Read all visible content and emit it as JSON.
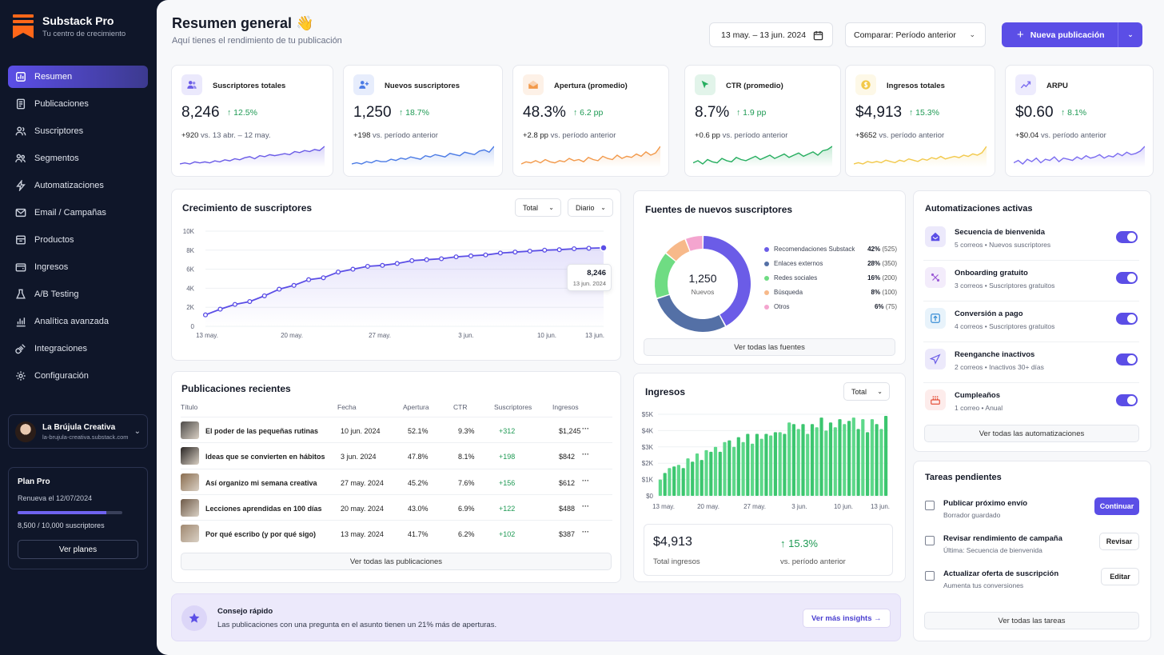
{
  "brand": {
    "name": "Substack Pro",
    "tagline": "Tu centro de crecimiento"
  },
  "nav": [
    {
      "label": "Resumen",
      "icon": "chart-square-icon",
      "active": true
    },
    {
      "label": "Publicaciones",
      "icon": "document-icon"
    },
    {
      "label": "Suscriptores",
      "icon": "users-icon"
    },
    {
      "label": "Segmentos",
      "icon": "segments-icon"
    },
    {
      "label": "Automatizaciones",
      "icon": "lightning-icon"
    },
    {
      "label": "Email / Campañas",
      "icon": "mail-icon"
    },
    {
      "label": "Productos",
      "icon": "box-icon"
    },
    {
      "label": "Ingresos",
      "icon": "wallet-icon"
    },
    {
      "label": "A/B Testing",
      "icon": "flask-icon"
    },
    {
      "label": "Analítica avanzada",
      "icon": "bar-chart-icon"
    },
    {
      "label": "Integraciones",
      "icon": "plug-icon"
    },
    {
      "label": "Configuración",
      "icon": "gear-icon"
    }
  ],
  "account": {
    "name": "La Brújula Creativa",
    "url": "la-brujula-creativa.substack.com"
  },
  "plan": {
    "title": "Plan Pro",
    "renew": "Renueva el 12/07/2024",
    "usage_text": "8,500 / 10,000 suscriptores",
    "used": 8500,
    "limit": 10000,
    "button": "Ver planes"
  },
  "header": {
    "title": "Resumen general 👋",
    "subtitle": "Aquí tienes el rendimiento de tu publicación",
    "date_range": "13 may. – 13 jun. 2024",
    "compare": "Comparar: Período anterior",
    "new_post": "Nueva publicación"
  },
  "kpis": [
    {
      "label": "Suscriptores totales",
      "value": "8,246",
      "delta": "12.5%",
      "cmp_value": "+920",
      "cmp_text": "vs. 13 abr. – 12 may.",
      "color": "#6b5ce7",
      "icon": "users-icon",
      "spark": [
        4,
        5,
        4,
        6,
        5,
        6,
        5,
        7,
        6,
        8,
        7,
        9,
        8,
        10,
        11,
        9,
        12,
        11,
        13,
        12,
        13,
        14,
        13,
        16,
        15,
        17,
        16,
        18,
        17,
        21
      ]
    },
    {
      "label": "Nuevos suscriptores",
      "value": "1,250",
      "delta": "18.7%",
      "cmp_value": "+198",
      "cmp_text": "vs. período anterior",
      "color": "#4b7be5",
      "icon": "user-plus-icon",
      "spark": [
        5,
        6,
        5,
        7,
        6,
        8,
        7,
        7,
        9,
        8,
        10,
        9,
        11,
        10,
        9,
        12,
        11,
        13,
        12,
        11,
        14,
        13,
        12,
        15,
        14,
        13,
        16,
        17,
        15,
        20
      ]
    },
    {
      "label": "Apertura (promedio)",
      "value": "48.3%",
      "delta": "6.2 pp",
      "cmp_value": "+2.8 pp",
      "cmp_text": "vs. período anterior",
      "color": "#f2994a",
      "icon": "mail-open-icon",
      "spark": [
        5,
        7,
        6,
        8,
        6,
        9,
        7,
        6,
        8,
        7,
        10,
        8,
        9,
        7,
        11,
        9,
        8,
        12,
        10,
        9,
        13,
        10,
        12,
        11,
        14,
        12,
        16,
        13,
        15,
        21
      ]
    },
    {
      "label": "CTR (promedio)",
      "value": "8.7%",
      "delta": "1.9 pp",
      "cmp_value": "+0.6 pp",
      "cmp_text": "vs. período anterior",
      "color": "#27ae60",
      "icon": "cursor-icon",
      "spark": [
        6,
        8,
        5,
        9,
        7,
        6,
        10,
        8,
        7,
        11,
        9,
        8,
        10,
        12,
        9,
        11,
        13,
        10,
        12,
        14,
        11,
        13,
        15,
        12,
        14,
        16,
        13,
        17,
        18,
        21
      ]
    },
    {
      "label": "Ingresos totales",
      "value": "$4,913",
      "delta": "15.3%",
      "cmp_value": "+$652",
      "cmp_text": "vs. período anterior",
      "color": "#f2c94c",
      "icon": "dollar-icon",
      "spark": [
        6,
        7,
        6,
        8,
        7,
        8,
        7,
        9,
        8,
        7,
        9,
        8,
        10,
        9,
        8,
        10,
        9,
        11,
        10,
        12,
        10,
        11,
        12,
        11,
        13,
        12,
        14,
        13,
        15,
        20
      ]
    },
    {
      "label": "ARPU",
      "value": "$0.60",
      "delta": "8.1%",
      "cmp_value": "+$0.04",
      "cmp_text": "vs. período anterior",
      "color": "#7b6cf0",
      "icon": "trend-icon",
      "spark": [
        7,
        9,
        6,
        10,
        8,
        11,
        7,
        10,
        9,
        12,
        8,
        11,
        10,
        9,
        12,
        10,
        13,
        11,
        12,
        14,
        11,
        13,
        12,
        15,
        13,
        16,
        14,
        15,
        17,
        21
      ]
    }
  ],
  "growth": {
    "title": "Crecimiento de suscriptores",
    "filter1": "Total",
    "filter2": "Diario",
    "tooltip_value": "8,246",
    "tooltip_date": "13 jun. 2024",
    "chart_data": {
      "type": "line",
      "title": "Crecimiento de suscriptores",
      "x_labels": [
        "13 may.",
        "20 may.",
        "27 may.",
        "3 jun.",
        "10 jun.",
        "13 jun."
      ],
      "y_ticks": [
        "0",
        "2K",
        "4K",
        "6K",
        "8K",
        "10K"
      ],
      "ylim": [
        0,
        10000
      ],
      "values": [
        1200,
        1800,
        2300,
        2600,
        3200,
        3900,
        4300,
        4900,
        5100,
        5700,
        6000,
        6300,
        6400,
        6600,
        6900,
        7000,
        7100,
        7300,
        7400,
        7500,
        7700,
        7800,
        7900,
        8000,
        8050,
        8150,
        8200,
        8246
      ]
    }
  },
  "sources": {
    "title": "Fuentes de nuevos suscriptores",
    "center_value": "1,250",
    "center_label": "Nuevos",
    "button": "Ver todas las fuentes",
    "chart_data": {
      "type": "pie",
      "title": "Fuentes de nuevos suscriptores",
      "items": [
        {
          "name": "Recomendaciones Substack",
          "pct": "42%",
          "count": "(525)",
          "value": 42,
          "color": "#6b5ce7"
        },
        {
          "name": "Enlaces externos",
          "pct": "28%",
          "count": "(350)",
          "value": 28,
          "color": "#5470a6"
        },
        {
          "name": "Redes sociales",
          "pct": "16%",
          "count": "(200)",
          "value": 16,
          "color": "#6fdc83"
        },
        {
          "name": "Búsqueda",
          "pct": "8%",
          "count": "(100)",
          "value": 8,
          "color": "#f7b98a"
        },
        {
          "name": "Otros",
          "pct": "6%",
          "count": "(75)",
          "value": 6,
          "color": "#f4a5cf"
        }
      ]
    }
  },
  "automations": {
    "title": "Automatizaciones activas",
    "button": "Ver todas las automatizaciones",
    "items": [
      {
        "name": "Secuencia de bienvenida",
        "desc": "5 correos • Nuevos suscriptores",
        "icon": "home-icon",
        "bg": "#ece9fb",
        "fg": "#5b4ee6"
      },
      {
        "name": "Onboarding gratuito",
        "desc": "3 correos • Suscriptores gratuitos",
        "icon": "route-icon",
        "bg": "#f3ecfb",
        "fg": "#9b59d6"
      },
      {
        "name": "Conversión a pago",
        "desc": "4 correos • Suscriptores gratuitos",
        "icon": "upgrade-icon",
        "bg": "#e8f3fb",
        "fg": "#3a8fd6"
      },
      {
        "name": "Reenganche inactivos",
        "desc": "2 correos • Inactivos 30+ días",
        "icon": "send-icon",
        "bg": "#ece9fb",
        "fg": "#6b5ce7"
      },
      {
        "name": "Cumpleaños",
        "desc": "1 correo • Anual",
        "icon": "cake-icon",
        "bg": "#fdeceb",
        "fg": "#e5533d"
      }
    ]
  },
  "posts": {
    "title": "Publicaciones recientes",
    "button": "Ver todas las publicaciones",
    "headers": [
      "Título",
      "Fecha",
      "Apertura",
      "CTR",
      "Suscriptores",
      "Ingresos"
    ],
    "rows": [
      {
        "title": "El poder de las pequeñas rutinas",
        "date": "10 jun. 2024",
        "open": "52.1%",
        "ctr": "9.3%",
        "subs": "+312",
        "rev": "$1,245",
        "more": "···",
        "thumb": "#4d4a48"
      },
      {
        "title": "Ideas que se convierten en hábitos",
        "date": "3 jun. 2024",
        "open": "47.8%",
        "ctr": "8.1%",
        "subs": "+198",
        "rev": "$842",
        "more": "···",
        "thumb": "#2a2624"
      },
      {
        "title": "Así organizo mi semana creativa",
        "date": "27 may. 2024",
        "open": "45.2%",
        "ctr": "7.6%",
        "subs": "+156",
        "rev": "$612",
        "more": "···",
        "thumb": "#8a6d4f"
      },
      {
        "title": "Lecciones aprendidas en 100 días",
        "date": "20 may. 2024",
        "open": "43.0%",
        "ctr": "6.9%",
        "subs": "+122",
        "rev": "$488",
        "more": "···",
        "thumb": "#6e5a48"
      },
      {
        "title": "Por qué escribo (y por qué sigo)",
        "date": "13 may. 2024",
        "open": "41.7%",
        "ctr": "6.2%",
        "subs": "+102",
        "rev": "$387",
        "more": "···",
        "thumb": "#a08870"
      }
    ]
  },
  "revenue": {
    "title": "Ingresos",
    "filter": "Total",
    "total": "$4,913",
    "total_label": "Total ingresos",
    "delta": "15.3%",
    "delta_label": "vs. período anterior",
    "chart_data": {
      "type": "bar",
      "title": "Ingresos",
      "x_labels": [
        "13 may.",
        "20 may.",
        "27 may.",
        "3 jun.",
        "10 jun.",
        "13 jun."
      ],
      "y_ticks": [
        "$0",
        "$1K",
        "$2K",
        "$3K",
        "$4K",
        "$5K"
      ],
      "ylim": [
        0,
        5000
      ],
      "values": [
        1000,
        1400,
        1700,
        1800,
        1900,
        1700,
        2300,
        2100,
        2600,
        2200,
        2800,
        2700,
        3000,
        2700,
        3300,
        3400,
        3000,
        3600,
        3300,
        3800,
        3200,
        3800,
        3500,
        3800,
        3700,
        3900,
        3900,
        3800,
        4500,
        4400,
        4100,
        4400,
        3800,
        4400,
        4200,
        4800,
        4000,
        4500,
        4200,
        4700,
        4400,
        4600,
        4800,
        4100,
        4700,
        3900,
        4700,
        4400,
        4100,
        4900
      ]
    }
  },
  "tasks": {
    "title": "Tareas pendientes",
    "button": "Ver todas las tareas",
    "items": [
      {
        "name": "Publicar próximo envío",
        "desc": "Borrador guardado",
        "action": "Continuar",
        "primary": true
      },
      {
        "name": "Revisar rendimiento de campaña",
        "desc": "Última: Secuencia de bienvenida",
        "action": "Revisar",
        "primary": false
      },
      {
        "name": "Actualizar oferta de suscripción",
        "desc": "Aumenta tus conversiones",
        "action": "Editar",
        "primary": false
      }
    ]
  },
  "tip": {
    "title": "Consejo rápido",
    "text": "Las publicaciones con una pregunta en el asunto tienen un 21% más de aperturas.",
    "button": "Ver más insights →"
  },
  "colors": {
    "accent": "#5b4ee6",
    "positive": "#1f9a54",
    "sidebar": "#0f1629"
  }
}
